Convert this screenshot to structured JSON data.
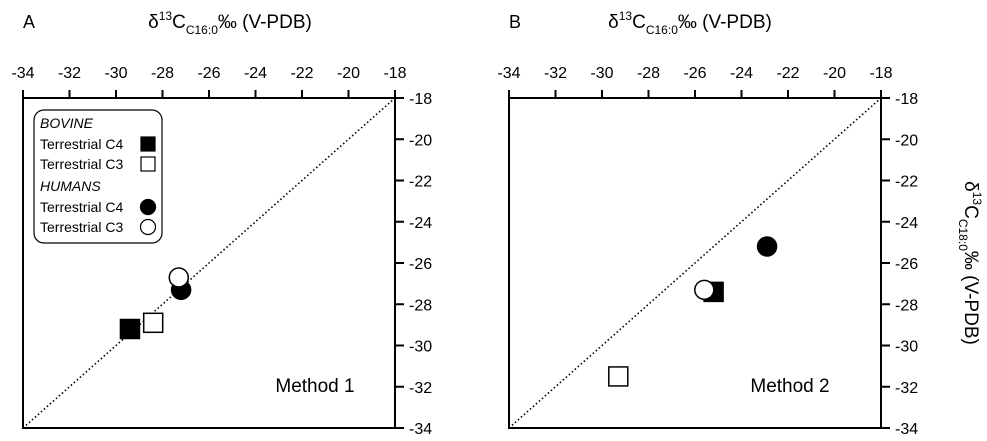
{
  "chart_data": [
    {
      "type": "scatter",
      "panel": "A",
      "xlabel": {
        "main": "δ",
        "sup": "13",
        "base": "C",
        "sub": "C16:0",
        "rest": "‰ (V-PDB)"
      },
      "ylabel": "",
      "xlim": [
        -34,
        -18
      ],
      "ylim": [
        -34,
        -18
      ],
      "xticks": [
        -34,
        -32,
        -30,
        -28,
        -26,
        -24,
        -22,
        -20,
        -18
      ],
      "yticks": [
        -18,
        -20,
        -22,
        -24,
        -26,
        -28,
        -30,
        -32,
        -34
      ],
      "identity_line": true,
      "annotation": "Method 1",
      "legend": {
        "position": "top-left",
        "groups": [
          {
            "title": "BOVINE",
            "entries": [
              {
                "label": "Terrestrial C4",
                "marker": "filled-square"
              },
              {
                "label": "Terrestrial C3",
                "marker": "open-square"
              }
            ]
          },
          {
            "title": "HUMANS",
            "entries": [
              {
                "label": "Terrestrial C4",
                "marker": "filled-circle"
              },
              {
                "label": "Terrestrial C3",
                "marker": "open-circle"
              }
            ]
          }
        ]
      },
      "series": [
        {
          "name": "Terrestrial C4",
          "group": "BOVINE",
          "marker": "filled-square",
          "points": [
            {
              "x": -29.4,
              "y": -29.2
            }
          ]
        },
        {
          "name": "Terrestrial C3",
          "group": "BOVINE",
          "marker": "open-square",
          "points": [
            {
              "x": -28.4,
              "y": -28.9
            }
          ]
        },
        {
          "name": "Terrestrial C4",
          "group": "HUMANS",
          "marker": "filled-circle",
          "points": [
            {
              "x": -27.2,
              "y": -27.3
            }
          ]
        },
        {
          "name": "Terrestrial C3",
          "group": "HUMANS",
          "marker": "open-circle",
          "points": [
            {
              "x": -27.3,
              "y": -26.7
            }
          ]
        }
      ]
    },
    {
      "type": "scatter",
      "panel": "B",
      "xlabel": {
        "main": "δ",
        "sup": "13",
        "base": "C",
        "sub": "C16:0",
        "rest": "‰ (V-PDB)"
      },
      "ylabel": {
        "main": "δ",
        "sup": "13",
        "base": "C",
        "sub": "C18:0",
        "rest": "‰ (V-PDB)"
      },
      "xlim": [
        -34,
        -18
      ],
      "ylim": [
        -34,
        -18
      ],
      "xticks": [
        -34,
        -32,
        -30,
        -28,
        -26,
        -24,
        -22,
        -20,
        -18
      ],
      "yticks": [
        -18,
        -20,
        -22,
        -24,
        -26,
        -28,
        -30,
        -32,
        -34
      ],
      "identity_line": true,
      "annotation": "Method 2",
      "series": [
        {
          "name": "Terrestrial C4",
          "group": "BOVINE",
          "marker": "filled-square",
          "points": [
            {
              "x": -25.2,
              "y": -27.4
            }
          ]
        },
        {
          "name": "Terrestrial C3",
          "group": "BOVINE",
          "marker": "open-square",
          "points": [
            {
              "x": -29.3,
              "y": -31.5
            }
          ]
        },
        {
          "name": "Terrestrial C4",
          "group": "HUMANS",
          "marker": "filled-circle",
          "points": [
            {
              "x": -22.9,
              "y": -25.2
            }
          ]
        },
        {
          "name": "Terrestrial C3",
          "group": "HUMANS",
          "marker": "open-circle",
          "points": [
            {
              "x": -25.6,
              "y": -27.3
            }
          ]
        }
      ]
    }
  ]
}
